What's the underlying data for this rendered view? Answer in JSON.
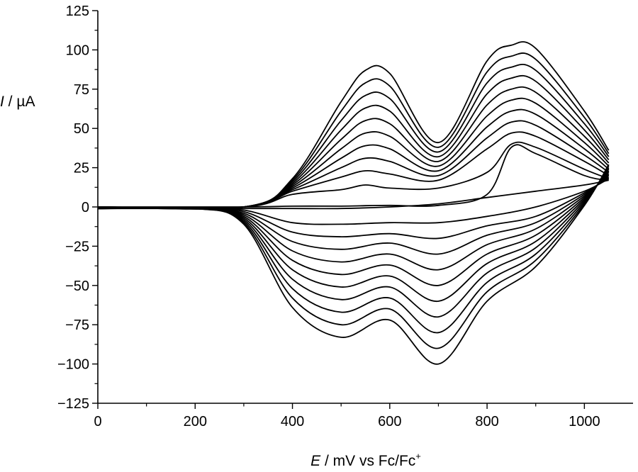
{
  "chart_data": {
    "type": "line",
    "title": "",
    "xlabel": {
      "symbol": "E",
      "rest": " / mV vs Fc/Fc",
      "sup": "+"
    },
    "ylabel": {
      "symbol": "I",
      "rest": " / µA"
    },
    "xlim": [
      0,
      1100
    ],
    "ylim": [
      -125,
      125
    ],
    "x_ticks": [
      0,
      200,
      400,
      600,
      800,
      1000
    ],
    "x_tick_labels": [
      "0",
      "200",
      "400",
      "600",
      "800",
      "1000"
    ],
    "y_ticks": [
      -125,
      -100,
      -75,
      -50,
      -25,
      0,
      25,
      50,
      75,
      100,
      125
    ],
    "y_tick_labels": [
      "−125",
      "−100",
      "−75",
      "−50",
      "−25",
      "0",
      "25",
      "50",
      "75",
      "100",
      "125"
    ],
    "grid": false,
    "legend": "none",
    "line_color": "#000000",
    "series": [
      {
        "anodic": {
          "x": [
            0,
            300,
            400,
            500,
            550,
            600,
            700,
            800,
            850,
            900,
            1000,
            1050
          ],
          "y": [
            0,
            0,
            0.5,
            0.5,
            0.8,
            1,
            1,
            8,
            38,
            34,
            20,
            17
          ]
        },
        "cathodic": {
          "x": [
            1050,
            1000,
            900,
            800,
            700,
            600,
            500,
            400,
            300,
            200,
            0
          ],
          "y": [
            17,
            14,
            10,
            6,
            2,
            0,
            -1,
            -1,
            -1,
            -1,
            -1
          ]
        }
      },
      {
        "anodic": {
          "x": [
            0,
            300,
            400,
            500,
            550,
            600,
            700,
            800,
            850,
            900,
            1000,
            1050
          ],
          "y": [
            0,
            0,
            8,
            11,
            14,
            12,
            12,
            22,
            40,
            38,
            24,
            18
          ]
        },
        "cathodic": {
          "x": [
            1050,
            1000,
            900,
            800,
            700,
            600,
            500,
            400,
            300,
            200,
            0
          ],
          "y": [
            18,
            10,
            0,
            -6,
            -10,
            -10,
            -11,
            -10,
            -2,
            -1,
            -1
          ]
        }
      },
      {
        "anodic": {
          "x": [
            0,
            300,
            400,
            500,
            550,
            600,
            700,
            800,
            850,
            900,
            1000,
            1050
          ],
          "y": [
            0,
            0,
            10,
            19,
            23,
            21,
            17,
            37,
            47,
            45,
            29,
            20
          ]
        },
        "cathodic": {
          "x": [
            1050,
            1000,
            900,
            800,
            700,
            600,
            500,
            400,
            300,
            200,
            0
          ],
          "y": [
            19,
            9,
            -6,
            -12,
            -20,
            -17,
            -19,
            -16,
            -3,
            -1,
            -1
          ]
        }
      },
      {
        "anodic": {
          "x": [
            0,
            300,
            400,
            500,
            550,
            600,
            700,
            800,
            850,
            900,
            1000,
            1050
          ],
          "y": [
            0,
            0,
            11,
            25,
            31,
            29,
            20,
            44,
            54,
            52,
            33,
            22
          ]
        },
        "cathodic": {
          "x": [
            1050,
            1000,
            900,
            800,
            700,
            600,
            500,
            400,
            300,
            200,
            0
          ],
          "y": [
            20,
            8,
            -10,
            -18,
            -30,
            -23,
            -27,
            -22,
            -4,
            -1,
            -1
          ]
        }
      },
      {
        "anodic": {
          "x": [
            0,
            300,
            400,
            500,
            550,
            600,
            700,
            800,
            850,
            900,
            1000,
            1050
          ],
          "y": [
            0,
            0,
            12,
            31,
            39,
            37,
            23,
            51,
            61,
            59,
            37,
            24
          ]
        },
        "cathodic": {
          "x": [
            1050,
            1000,
            900,
            800,
            700,
            600,
            500,
            400,
            300,
            200,
            0
          ],
          "y": [
            21,
            7,
            -14,
            -24,
            -40,
            -30,
            -35,
            -28,
            -5,
            -1,
            -1
          ]
        }
      },
      {
        "anodic": {
          "x": [
            0,
            300,
            400,
            500,
            550,
            600,
            700,
            800,
            850,
            900,
            1000,
            1050
          ],
          "y": [
            0,
            0,
            13,
            37,
            47,
            45,
            26,
            58,
            68,
            66,
            41,
            26
          ]
        },
        "cathodic": {
          "x": [
            1050,
            1000,
            900,
            800,
            700,
            600,
            500,
            400,
            300,
            200,
            0
          ],
          "y": [
            22,
            6,
            -18,
            -30,
            -50,
            -37,
            -43,
            -34,
            -6,
            -1,
            -1
          ]
        }
      },
      {
        "anodic": {
          "x": [
            0,
            300,
            400,
            500,
            550,
            600,
            700,
            800,
            850,
            900,
            1000,
            1050
          ],
          "y": [
            0,
            0,
            14,
            43,
            55,
            53,
            29,
            65,
            75,
            73,
            45,
            28
          ]
        },
        "cathodic": {
          "x": [
            1050,
            1000,
            900,
            800,
            700,
            600,
            500,
            400,
            300,
            200,
            0
          ],
          "y": [
            23,
            5,
            -22,
            -36,
            -60,
            -44,
            -51,
            -40,
            -7,
            -1,
            -1
          ]
        }
      },
      {
        "anodic": {
          "x": [
            0,
            300,
            400,
            500,
            550,
            600,
            700,
            800,
            850,
            900,
            1000,
            1050
          ],
          "y": [
            0,
            0,
            15,
            49,
            63,
            61,
            32,
            72,
            82,
            80,
            49,
            30
          ]
        },
        "cathodic": {
          "x": [
            1050,
            1000,
            900,
            800,
            700,
            600,
            500,
            400,
            300,
            200,
            0
          ],
          "y": [
            24,
            4,
            -26,
            -42,
            -70,
            -51,
            -59,
            -46,
            -8,
            -1,
            -1
          ]
        }
      },
      {
        "anodic": {
          "x": [
            0,
            300,
            400,
            500,
            550,
            600,
            700,
            800,
            850,
            900,
            1000,
            1050
          ],
          "y": [
            0,
            0,
            16,
            55,
            71,
            69,
            35,
            79,
            89,
            87,
            53,
            32
          ]
        },
        "cathodic": {
          "x": [
            1050,
            1000,
            900,
            800,
            700,
            600,
            500,
            400,
            300,
            200,
            0
          ],
          "y": [
            25,
            3,
            -30,
            -48,
            -80,
            -58,
            -67,
            -52,
            -9,
            -1,
            -1
          ]
        }
      },
      {
        "anodic": {
          "x": [
            0,
            300,
            400,
            500,
            550,
            600,
            700,
            800,
            850,
            900,
            1000,
            1050
          ],
          "y": [
            0,
            0,
            17,
            61,
            79,
            77,
            38,
            86,
            96,
            94,
            57,
            34
          ]
        },
        "cathodic": {
          "x": [
            1050,
            1000,
            900,
            800,
            700,
            600,
            500,
            400,
            300,
            200,
            0
          ],
          "y": [
            26,
            2,
            -34,
            -54,
            -90,
            -65,
            -75,
            -58,
            -10,
            -1,
            -1
          ]
        }
      },
      {
        "anodic": {
          "x": [
            0,
            300,
            400,
            500,
            550,
            600,
            700,
            800,
            850,
            900,
            1000,
            1050
          ],
          "y": [
            0,
            0,
            18,
            67,
            87,
            85,
            41,
            93,
            103,
            101,
            61,
            36
          ]
        },
        "cathodic": {
          "x": [
            1050,
            1000,
            900,
            800,
            700,
            600,
            500,
            400,
            300,
            200,
            0
          ],
          "y": [
            27,
            1,
            -38,
            -60,
            -100,
            -72,
            -83,
            -64,
            -11,
            -1,
            -1
          ]
        }
      }
    ]
  }
}
